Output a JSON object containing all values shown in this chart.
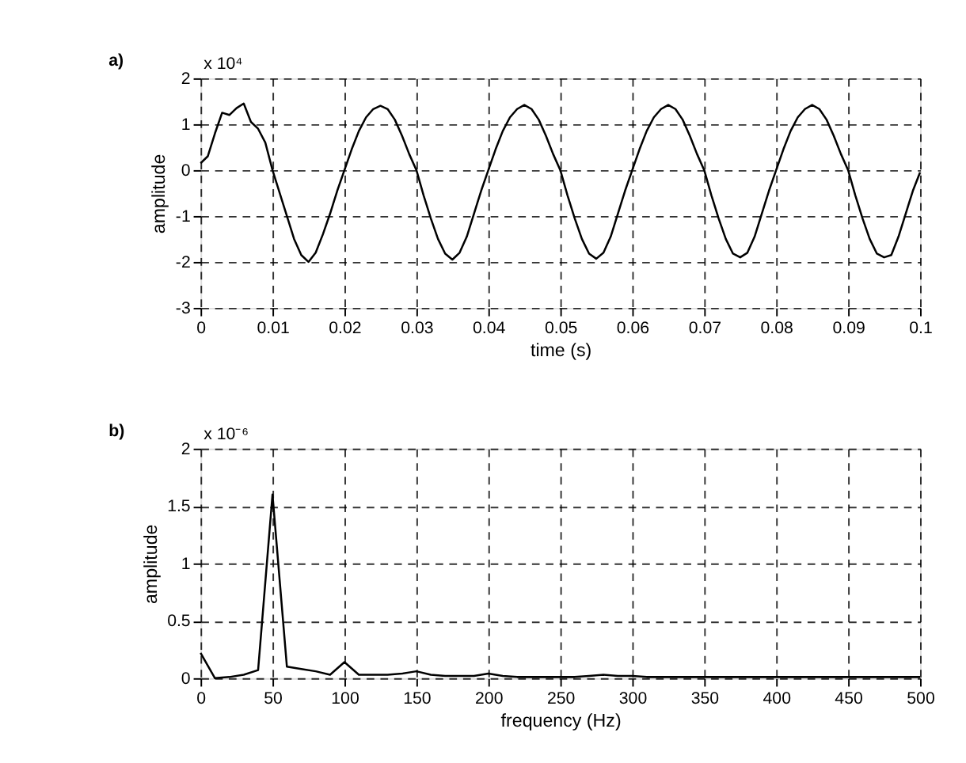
{
  "chart_data": [
    {
      "type": "line",
      "xlabel": "time (s)",
      "ylabel": "amplitude",
      "annotations": [
        "a)",
        "x 10⁴"
      ],
      "x": [
        0,
        0.001,
        0.002,
        0.003,
        0.004,
        0.005,
        0.006,
        0.007,
        0.008,
        0.009,
        0.01,
        0.011,
        0.012,
        0.013,
        0.014,
        0.015,
        0.016,
        0.017,
        0.018,
        0.019,
        0.02,
        0.021,
        0.022,
        0.023,
        0.024,
        0.025,
        0.026,
        0.027,
        0.028,
        0.029,
        0.03,
        0.031,
        0.032,
        0.033,
        0.034,
        0.035,
        0.036,
        0.037,
        0.038,
        0.039,
        0.04,
        0.041,
        0.042,
        0.043,
        0.044,
        0.045,
        0.046,
        0.047,
        0.048,
        0.049,
        0.05,
        0.051,
        0.052,
        0.053,
        0.054,
        0.055,
        0.056,
        0.057,
        0.058,
        0.059,
        0.06,
        0.061,
        0.062,
        0.063,
        0.064,
        0.065,
        0.066,
        0.067,
        0.068,
        0.069,
        0.07,
        0.071,
        0.072,
        0.073,
        0.074,
        0.075,
        0.076,
        0.077,
        0.078,
        0.079,
        0.08,
        0.081,
        0.082,
        0.083,
        0.084,
        0.085,
        0.086,
        0.087,
        0.088,
        0.089,
        0.09,
        0.091,
        0.092,
        0.093,
        0.094,
        0.095,
        0.096,
        0.097,
        0.098,
        0.099,
        0.1
      ],
      "series": [
        {
          "color": "#000000",
          "values": [
            0.15,
            0.3,
            0.8,
            1.25,
            1.2,
            1.35,
            1.45,
            1.05,
            0.9,
            0.6,
            0,
            -0.5,
            -1.0,
            -1.5,
            -1.85,
            -2.0,
            -1.8,
            -1.4,
            -0.95,
            -0.45,
            0,
            0.45,
            0.85,
            1.15,
            1.33,
            1.4,
            1.33,
            1.1,
            0.75,
            0.35,
            0,
            -0.55,
            -1.05,
            -1.5,
            -1.82,
            -1.95,
            -1.8,
            -1.45,
            -0.95,
            -0.45,
            0,
            0.45,
            0.85,
            1.15,
            1.33,
            1.42,
            1.33,
            1.1,
            0.75,
            0.35,
            0,
            -0.55,
            -1.05,
            -1.5,
            -1.82,
            -1.93,
            -1.8,
            -1.45,
            -0.95,
            -0.45,
            0,
            0.45,
            0.85,
            1.15,
            1.33,
            1.42,
            1.33,
            1.1,
            0.75,
            0.35,
            0,
            -0.55,
            -1.05,
            -1.5,
            -1.82,
            -1.9,
            -1.8,
            -1.45,
            -0.95,
            -0.45,
            0,
            0.45,
            0.85,
            1.15,
            1.33,
            1.42,
            1.33,
            1.1,
            0.75,
            0.35,
            0,
            -0.55,
            -1.05,
            -1.5,
            -1.82,
            -1.9,
            -1.85,
            -1.45,
            -0.95,
            -0.45,
            -0.05
          ]
        }
      ],
      "xlim": [
        0,
        0.1
      ],
      "xticks": [
        0,
        0.01,
        0.02,
        0.03,
        0.04,
        0.05,
        0.06,
        0.07,
        0.08,
        0.09,
        0.1
      ],
      "ylim": [
        -3,
        2
      ],
      "yticks": [
        -3,
        -2,
        -1,
        0,
        1,
        2
      ],
      "grid": true,
      "line_style": "solid"
    },
    {
      "type": "line",
      "xlabel": "frequency (Hz)",
      "ylabel": "amplitude",
      "annotations": [
        "b)",
        "x 10⁻⁶"
      ],
      "x": [
        0,
        10,
        20,
        30,
        40,
        50,
        60,
        70,
        80,
        90,
        100,
        110,
        120,
        130,
        140,
        150,
        160,
        170,
        180,
        190,
        200,
        210,
        220,
        230,
        240,
        250,
        260,
        270,
        280,
        290,
        300,
        310,
        320,
        330,
        340,
        350,
        360,
        370,
        380,
        390,
        400,
        410,
        420,
        430,
        440,
        450,
        460,
        470,
        480,
        490,
        500
      ],
      "series": [
        {
          "color": "#000000",
          "values": [
            0.22,
            0,
            0.01,
            0.03,
            0.07,
            1.6,
            0.1,
            0.08,
            0.06,
            0.03,
            0.14,
            0.03,
            0.03,
            0.03,
            0.04,
            0.06,
            0.03,
            0.02,
            0.02,
            0.02,
            0.04,
            0.02,
            0.01,
            0.01,
            0.01,
            0.01,
            0.01,
            0.02,
            0.03,
            0.02,
            0.02,
            0.01,
            0.01,
            0.01,
            0.01,
            0.01,
            0.01,
            0.01,
            0.01,
            0.01,
            0.01,
            0.01,
            0.01,
            0.01,
            0.01,
            0.01,
            0.01,
            0.01,
            0.01,
            0.01,
            0.01
          ]
        }
      ],
      "xlim": [
        0,
        500
      ],
      "xticks": [
        0,
        50,
        100,
        150,
        200,
        250,
        300,
        350,
        400,
        450,
        500
      ],
      "ylim": [
        0,
        2
      ],
      "yticks": [
        0,
        0.5,
        1,
        1.5,
        2
      ],
      "grid": true,
      "line_style": "solid"
    }
  ]
}
